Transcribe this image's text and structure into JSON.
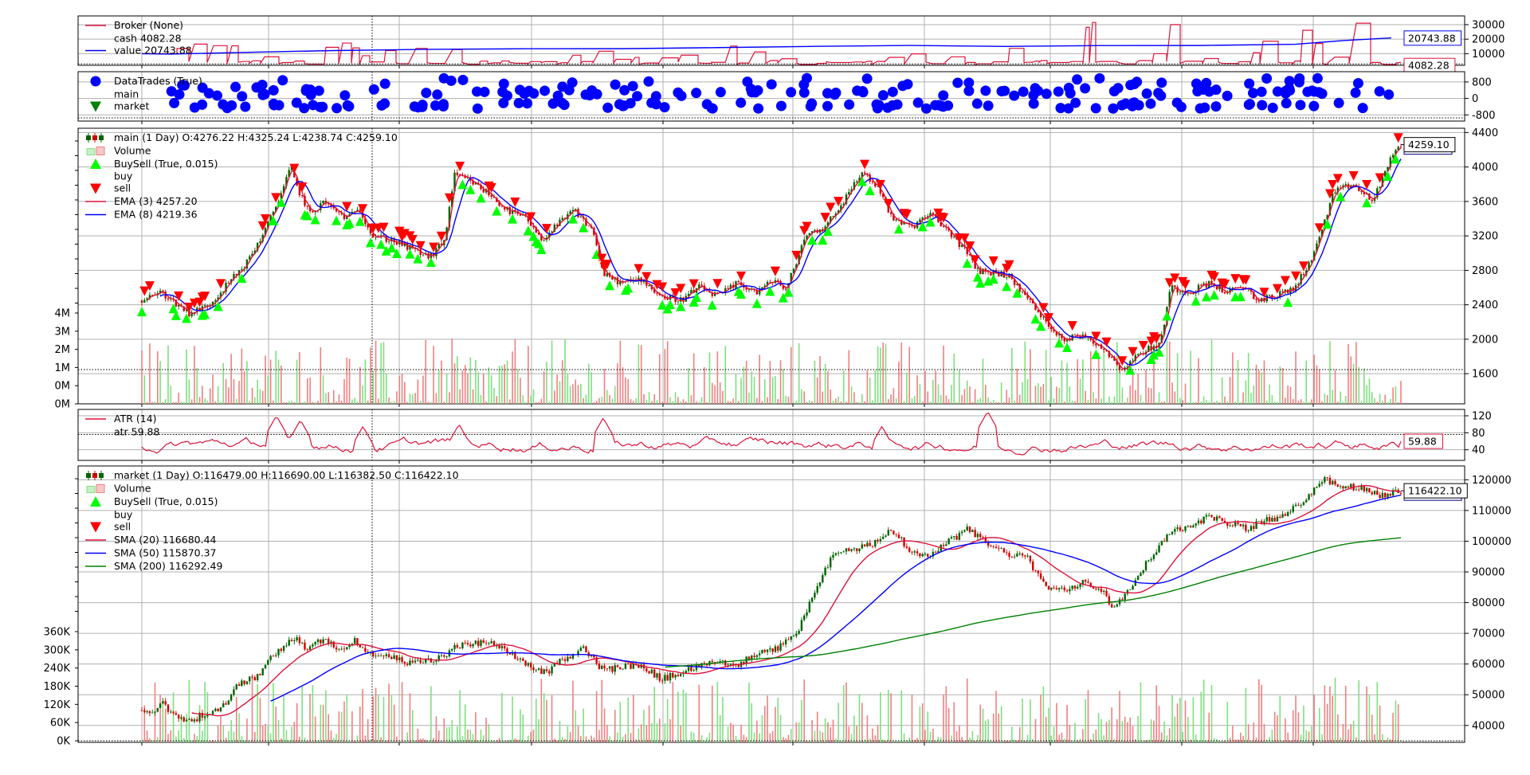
{
  "colors": {
    "cash": "#dc143c",
    "value": "#0000ff",
    "buy": "#00ff00",
    "sell": "#ff0000",
    "up_candle": "#006400",
    "down_candle": "#d00000",
    "volume_up": "#7fe07f",
    "volume_down": "#f08080",
    "ema3": "#dc143c",
    "ema8": "#0000ff",
    "sma20": "#dc143c",
    "sma50": "#0000ff",
    "sma200": "#008000",
    "atr": "#dc143c",
    "trade_dots": "#0000ff",
    "grid": "#b0b0b0"
  },
  "chart_data": [
    {
      "id": "broker",
      "type": "line",
      "legend": [
        {
          "label": "Broker (None)",
          "marker": "line",
          "color": "#dc143c"
        },
        {
          "label": "cash 4082.28",
          "marker": "none"
        },
        {
          "label": "value 20743.88",
          "marker": "line",
          "color": "#0000ff"
        }
      ],
      "yticks": [
        "30000",
        "20000",
        "10000"
      ],
      "ylim": [
        2000,
        36000
      ],
      "yticks_values": [
        30000,
        20000,
        10000
      ],
      "last_labels": [
        "20743.88",
        "4082.28"
      ],
      "series": [
        {
          "name": "cash",
          "last": 4082.28
        },
        {
          "name": "value",
          "last": 20743.88
        }
      ]
    },
    {
      "id": "datatrades",
      "type": "scatter",
      "legend": [
        {
          "label": "DataTrades (True)",
          "marker": "circle",
          "color": "#0000ff"
        },
        {
          "label": "main",
          "marker": "none"
        },
        {
          "label": "market",
          "marker": "triangle-down",
          "color": "#008000"
        }
      ],
      "yticks": [
        "800",
        "0",
        "-800"
      ],
      "yticks_values": [
        800,
        0,
        -800
      ],
      "ylim": [
        -1100,
        1300
      ]
    },
    {
      "id": "main",
      "type": "candlestick",
      "legend": [
        {
          "label": "main (1 Day) O:4276.22 H:4325.24 L:4238.74 C:4259.10",
          "marker": "candle"
        },
        {
          "label": "Volume",
          "marker": "volume"
        },
        {
          "label": "BuySell (True, 0.015)",
          "marker": "triangle-up",
          "color": "#00ff00"
        },
        {
          "label": "buy",
          "marker": "none"
        },
        {
          "label": "sell",
          "marker": "triangle-down",
          "color": "#ff0000"
        },
        {
          "label": "EMA (3) 4257.20",
          "marker": "line",
          "color": "#dc143c"
        },
        {
          "label": "EMA (8) 4219.36",
          "marker": "line",
          "color": "#0000ff"
        }
      ],
      "yticks": [
        "4400",
        "4000",
        "3600",
        "3200",
        "2800",
        "2400",
        "2000",
        "1600"
      ],
      "yticks_values": [
        4400,
        4000,
        3600,
        3200,
        2800,
        2400,
        2000,
        1600
      ],
      "ylim": [
        1250,
        4450
      ],
      "volume_ticks": [
        "4M",
        "3M",
        "2M",
        "1M",
        "0M",
        "0M"
      ],
      "last_label": "4259.10",
      "ohlc_last": {
        "o": 4276.22,
        "h": 4325.24,
        "l": 4238.74,
        "c": 4259.1
      },
      "close_path": [
        [
          0,
          2450
        ],
        [
          0.02,
          2550
        ],
        [
          0.035,
          2420
        ],
        [
          0.05,
          2300
        ],
        [
          0.07,
          2400
        ],
        [
          0.09,
          2650
        ],
        [
          0.11,
          2900
        ],
        [
          0.13,
          3300
        ],
        [
          0.145,
          3700
        ],
        [
          0.155,
          4000
        ],
        [
          0.16,
          3800
        ],
        [
          0.175,
          3450
        ],
        [
          0.19,
          3600
        ],
        [
          0.2,
          3500
        ],
        [
          0.215,
          3400
        ],
        [
          0.225,
          3550
        ],
        [
          0.24,
          3200
        ],
        [
          0.26,
          3150
        ],
        [
          0.28,
          3050
        ],
        [
          0.3,
          2950
        ],
        [
          0.315,
          3150
        ],
        [
          0.325,
          3900
        ],
        [
          0.34,
          3850
        ],
        [
          0.36,
          3700
        ],
        [
          0.38,
          3500
        ],
        [
          0.4,
          3400
        ],
        [
          0.415,
          3150
        ],
        [
          0.43,
          3300
        ],
        [
          0.45,
          3500
        ],
        [
          0.47,
          3250
        ],
        [
          0.48,
          2750
        ],
        [
          0.5,
          2650
        ],
        [
          0.52,
          2700
        ],
        [
          0.54,
          2500
        ],
        [
          0.56,
          2450
        ],
        [
          0.58,
          2600
        ],
        [
          0.6,
          2500
        ],
        [
          0.62,
          2650
        ],
        [
          0.64,
          2550
        ],
        [
          0.66,
          2700
        ],
        [
          0.67,
          2550
        ],
        [
          0.69,
          3200
        ],
        [
          0.71,
          3300
        ],
        [
          0.73,
          3600
        ],
        [
          0.75,
          3950
        ],
        [
          0.77,
          3700
        ],
        [
          0.78,
          3400
        ],
        [
          0.8,
          3300
        ],
        [
          0.82,
          3450
        ],
        [
          0.84,
          3250
        ],
        [
          0.855,
          3050
        ],
        [
          0.87,
          2800
        ],
        [
          0.9,
          2750
        ],
        [
          0.92,
          2500
        ],
        [
          0.94,
          2200
        ],
        [
          0.96,
          2000
        ],
        [
          0.98,
          2050
        ],
        [
          1.0,
          1900
        ],
        [
          1.02,
          1650
        ],
        [
          1.04,
          1850
        ],
        [
          1.06,
          1950
        ],
        [
          1.07,
          2600
        ],
        [
          1.09,
          2550
        ],
        [
          1.11,
          2650
        ],
        [
          1.13,
          2550
        ],
        [
          1.15,
          2600
        ],
        [
          1.16,
          2450
        ],
        [
          1.18,
          2500
        ],
        [
          1.2,
          2600
        ],
        [
          1.22,
          3000
        ],
        [
          1.24,
          3700
        ],
        [
          1.26,
          3800
        ],
        [
          1.28,
          3600
        ],
        [
          1.3,
          4100
        ],
        [
          1.31,
          4259
        ]
      ]
    },
    {
      "id": "atr",
      "type": "line",
      "legend": [
        {
          "label": "ATR (14)",
          "marker": "line",
          "color": "#dc143c"
        },
        {
          "label": "atr 59.88",
          "marker": "none"
        }
      ],
      "yticks": [
        "120",
        "80",
        "40"
      ],
      "yticks_values": [
        120,
        80,
        40
      ],
      "ylim": [
        15,
        135
      ],
      "last_label": "59.88",
      "series": [
        {
          "name": "atr",
          "last": 59.88
        }
      ]
    },
    {
      "id": "market",
      "type": "candlestick",
      "legend": [
        {
          "label": "market (1 Day) O:116479.00 H:116690.00 L:116382.50 C:116422.10",
          "marker": "candle"
        },
        {
          "label": "Volume",
          "marker": "volume"
        },
        {
          "label": "BuySell (True, 0.015)",
          "marker": "triangle-up",
          "color": "#00ff00"
        },
        {
          "label": "buy",
          "marker": "none"
        },
        {
          "label": "sell",
          "marker": "triangle-down",
          "color": "#ff0000"
        },
        {
          "label": "SMA (20) 116680.44",
          "marker": "line",
          "color": "#dc143c"
        },
        {
          "label": "SMA (50) 115870.37",
          "marker": "line",
          "color": "#0000ff"
        },
        {
          "label": "SMA (200) 116292.49",
          "marker": "line",
          "color": "#008000"
        }
      ],
      "yticks": [
        "120000",
        "110000",
        "100000",
        "90000",
        "80000",
        "70000",
        "60000",
        "50000",
        "40000"
      ],
      "yticks_values": [
        120000,
        110000,
        100000,
        90000,
        80000,
        70000,
        60000,
        50000,
        40000
      ],
      "ylim": [
        34500,
        124500
      ],
      "volume_ticks": [
        "360K",
        "300K",
        "240K",
        "180K",
        "120K",
        "60K",
        "0K"
      ],
      "last_label": "116422.10",
      "ohlc_last": {
        "o": 116479.0,
        "h": 116690.0,
        "l": 116382.5,
        "c": 116422.1
      },
      "close_path": [
        [
          0,
          45000
        ],
        [
          0.015,
          44000
        ],
        [
          0.02,
          47500
        ],
        [
          0.03,
          44500
        ],
        [
          0.04,
          43000
        ],
        [
          0.05,
          41000
        ],
        [
          0.065,
          44000
        ],
        [
          0.08,
          44500
        ],
        [
          0.1,
          53000
        ],
        [
          0.12,
          56000
        ],
        [
          0.135,
          62000
        ],
        [
          0.15,
          66000
        ],
        [
          0.16,
          69000
        ],
        [
          0.17,
          65000
        ],
        [
          0.19,
          68000
        ],
        [
          0.21,
          64500
        ],
        [
          0.22,
          68000
        ],
        [
          0.235,
          64000
        ],
        [
          0.26,
          62000
        ],
        [
          0.28,
          60000
        ],
        [
          0.3,
          61000
        ],
        [
          0.315,
          63000
        ],
        [
          0.33,
          66000
        ],
        [
          0.36,
          67000
        ],
        [
          0.38,
          64000
        ],
        [
          0.4,
          60000
        ],
        [
          0.42,
          57000
        ],
        [
          0.44,
          62000
        ],
        [
          0.46,
          65000
        ],
        [
          0.48,
          58000
        ],
        [
          0.5,
          59000
        ],
        [
          0.52,
          60000
        ],
        [
          0.54,
          55000
        ],
        [
          0.56,
          57000
        ],
        [
          0.58,
          60000
        ],
        [
          0.6,
          61000
        ],
        [
          0.62,
          60000
        ],
        [
          0.64,
          63000
        ],
        [
          0.66,
          65000
        ],
        [
          0.68,
          69000
        ],
        [
          0.7,
          84000
        ],
        [
          0.72,
          96000
        ],
        [
          0.74,
          97000
        ],
        [
          0.76,
          99000
        ],
        [
          0.78,
          104000
        ],
        [
          0.8,
          97000
        ],
        [
          0.82,
          95000
        ],
        [
          0.84,
          100000
        ],
        [
          0.86,
          104000
        ],
        [
          0.88,
          99000
        ],
        [
          0.9,
          96000
        ],
        [
          0.92,
          95000
        ],
        [
          0.94,
          85000
        ],
        [
          0.96,
          84000
        ],
        [
          0.98,
          87000
        ],
        [
          1.0,
          84000
        ],
        [
          1.01,
          78000
        ],
        [
          1.03,
          86000
        ],
        [
          1.05,
          95000
        ],
        [
          1.07,
          103000
        ],
        [
          1.09,
          105000
        ],
        [
          1.11,
          108000
        ],
        [
          1.13,
          106000
        ],
        [
          1.15,
          104000
        ],
        [
          1.17,
          107000
        ],
        [
          1.19,
          108000
        ],
        [
          1.21,
          114000
        ],
        [
          1.23,
          120000
        ],
        [
          1.25,
          118000
        ],
        [
          1.27,
          117000
        ],
        [
          1.29,
          115000
        ],
        [
          1.31,
          116422
        ]
      ]
    }
  ]
}
